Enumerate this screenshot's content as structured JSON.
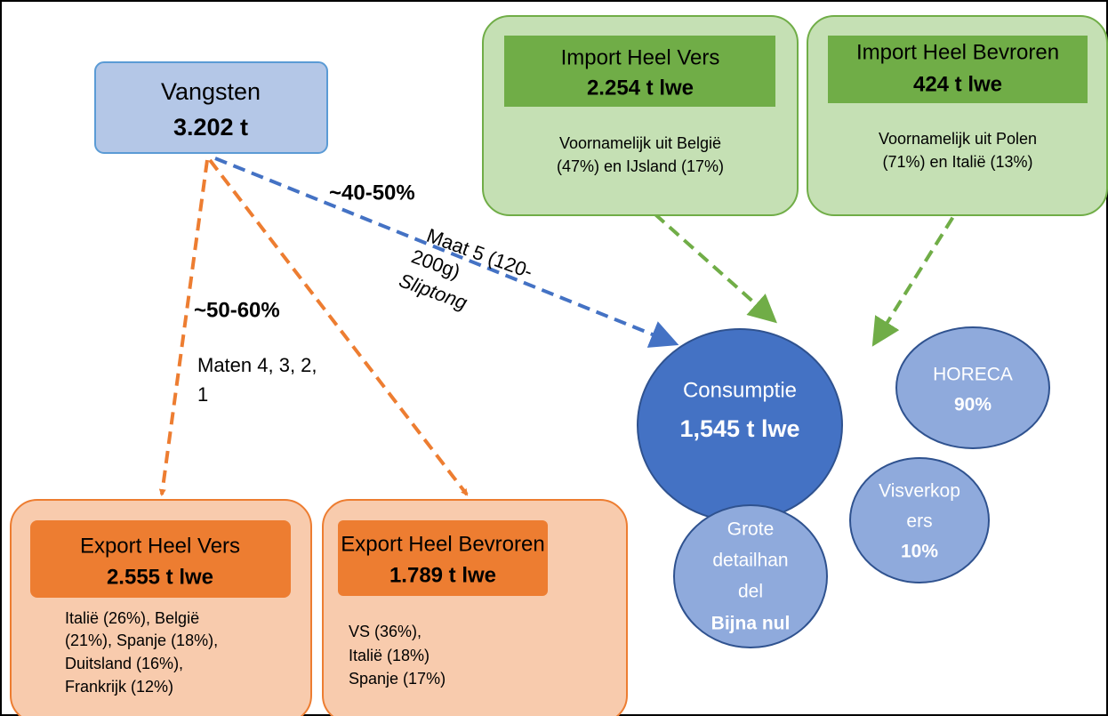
{
  "nodes": {
    "vangsten": {
      "title": "Vangsten",
      "value": "3.202 t"
    },
    "import_vers": {
      "title": "Import Heel Vers",
      "value": "2.254 t lwe",
      "note": [
        "Voornamelijk uit België",
        "(47%) en IJsland (17%)"
      ]
    },
    "import_bevroren": {
      "title": "Import Heel Bevroren",
      "value": "424 t lwe",
      "note": [
        "Voornamelijk uit Polen",
        "(71%) en Italië (13%)"
      ]
    },
    "export_vers": {
      "title": "Export Heel Vers",
      "value": "2.555 t lwe",
      "note": [
        "Italië (26%), België",
        "(21%), Spanje (18%),",
        "Duitsland (16%),",
        "Frankrijk (12%)"
      ]
    },
    "export_bevroren": {
      "title": "Export Heel Bevroren",
      "value": "1.789 t lwe",
      "note": [
        "VS (36%),",
        "Italië (18%)",
        "Spanje (17%)"
      ]
    },
    "consumptie": {
      "title": "Consumptie",
      "value": "1,545 t lwe"
    },
    "horeca": {
      "title": [
        "HORECA"
      ],
      "value": "90%"
    },
    "visverkopers": {
      "title": [
        "Visverkop",
        "ers"
      ],
      "value": "10%"
    },
    "grote_detailhandel": {
      "title": [
        "Grote",
        "detailhan",
        "del"
      ],
      "value": "Bijna nul"
    }
  },
  "edges": {
    "to_consumptie": {
      "share": "~40-50%",
      "label": [
        "Maat 5 (120-",
        "200g)"
      ],
      "species": "Sliptong"
    },
    "to_export": {
      "share": "~50-60%",
      "label": [
        "Maten 4, 3, 2,",
        "1"
      ]
    }
  }
}
